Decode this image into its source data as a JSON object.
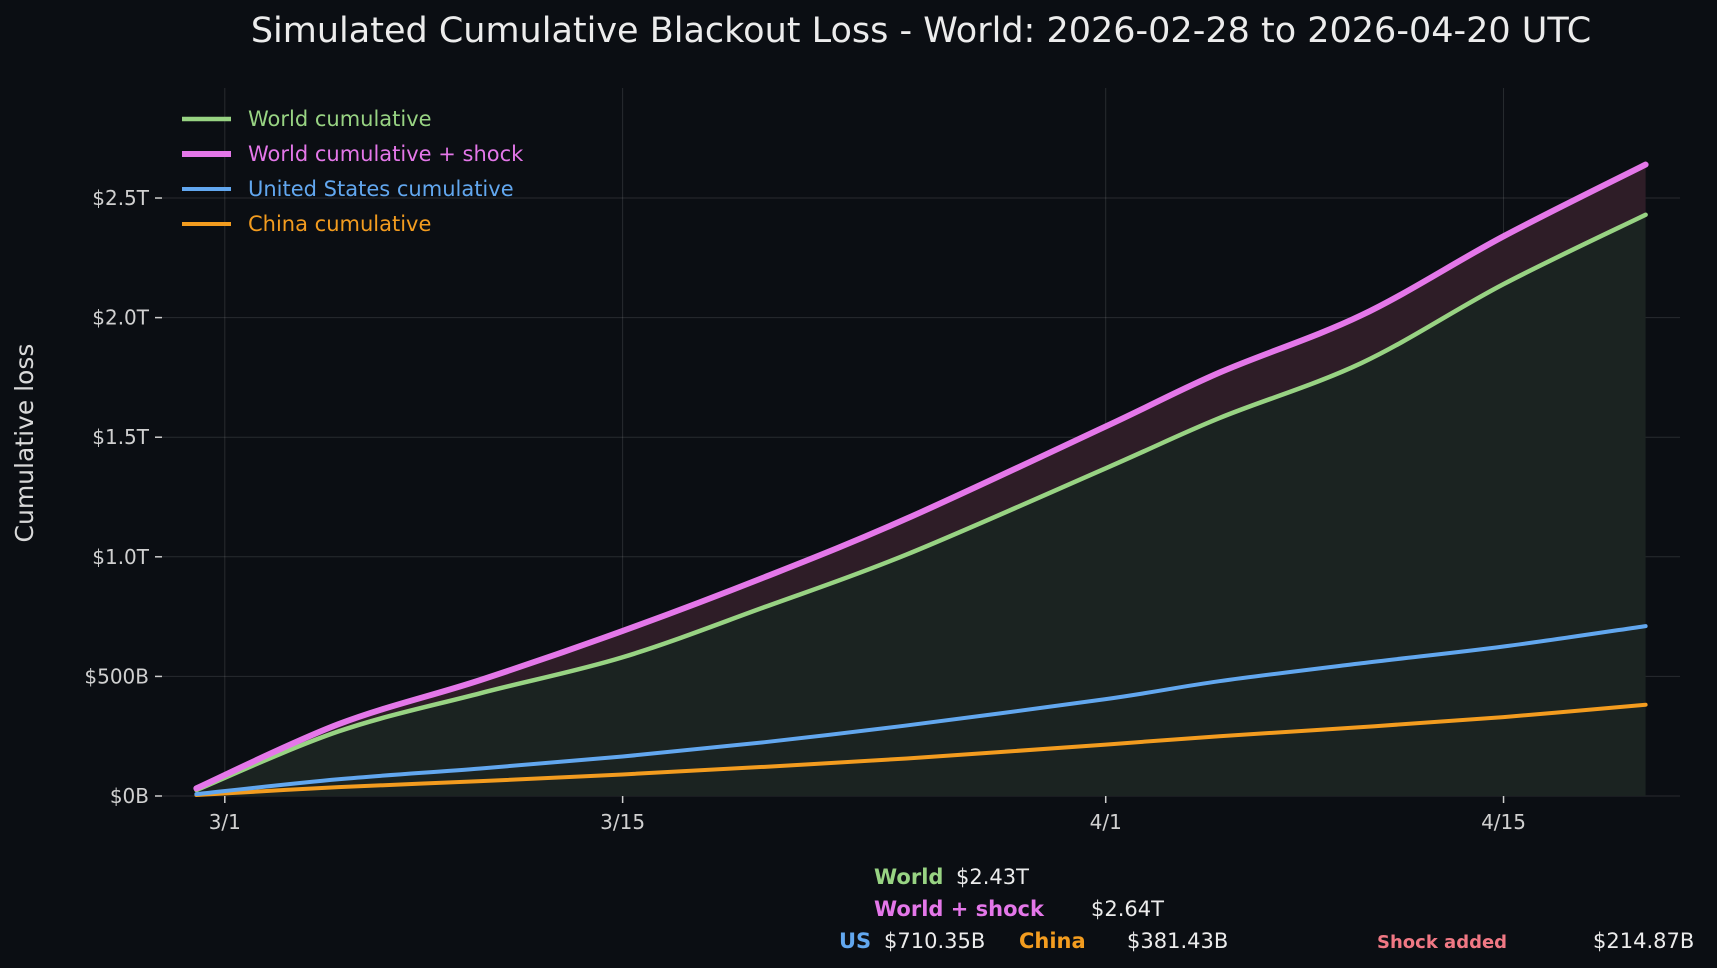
{
  "chart_data": {
    "type": "line",
    "title": "Simulated Cumulative Blackout Loss - World: 2026-02-28 to 2026-04-20 UTC",
    "ylabel": "Cumulative loss",
    "xlabel": "",
    "x_range": [
      "2026-02-28",
      "2026-04-20"
    ],
    "x_ticks": [
      {
        "date": "2026-03-01",
        "label": "3/1"
      },
      {
        "date": "2026-03-15",
        "label": "3/15"
      },
      {
        "date": "2026-04-01",
        "label": "4/1"
      },
      {
        "date": "2026-04-15",
        "label": "4/15"
      }
    ],
    "ylim_billions": [
      0,
      2960
    ],
    "y_ticks": [
      {
        "value": 0,
        "label": "$0B"
      },
      {
        "value": 500,
        "label": "$500B"
      },
      {
        "value": 1000,
        "label": "$1.0T"
      },
      {
        "value": 1500,
        "label": "$1.5T"
      },
      {
        "value": 2000,
        "label": "$2.0T"
      },
      {
        "value": 2500,
        "label": "$2.5T"
      }
    ],
    "y_unit": "USD billions",
    "grid": true,
    "legend_position": "top-left",
    "x": [
      "2026-02-28",
      "2026-03-05",
      "2026-03-10",
      "2026-03-15",
      "2026-03-20",
      "2026-03-25",
      "2026-04-01",
      "2026-04-05",
      "2026-04-10",
      "2026-04-15",
      "2026-04-20"
    ],
    "series": [
      {
        "name": "World cumulative",
        "color": "#98d383",
        "width": 4.5,
        "fill": "#1b2321",
        "values": [
          25,
          270,
          430,
          580,
          790,
          1010,
          1370,
          1580,
          1810,
          2140,
          2430
        ]
      },
      {
        "name": "World cumulative + shock",
        "color": "#e477e9",
        "width": 6,
        "fill": "#2e1d27",
        "values": [
          32,
          300,
          485,
          690,
          915,
          1160,
          1545,
          1770,
          2010,
          2340,
          2640
        ]
      },
      {
        "name": "United States cumulative",
        "color": "#62a7ef",
        "width": 4,
        "values": [
          8,
          70,
          115,
          165,
          225,
          295,
          405,
          480,
          555,
          625,
          710.35
        ]
      },
      {
        "name": "China cumulative",
        "color": "#f39c1f",
        "width": 4,
        "values": [
          4,
          37,
          62,
          90,
          122,
          157,
          215,
          250,
          288,
          330,
          381.43
        ]
      }
    ]
  },
  "summary": {
    "world_key": "World",
    "world_val": "$2.43T",
    "shock_world_key": "World + shock",
    "shock_world_val": "$2.64T",
    "us_key": "US",
    "us_val": "$710.35B",
    "china_key": "China",
    "china_val": "$381.43B",
    "shock_key": "Shock added",
    "shock_val": "$214.87B"
  },
  "colors": {
    "background": "#0b0e13",
    "shock_label": "#f07884"
  }
}
